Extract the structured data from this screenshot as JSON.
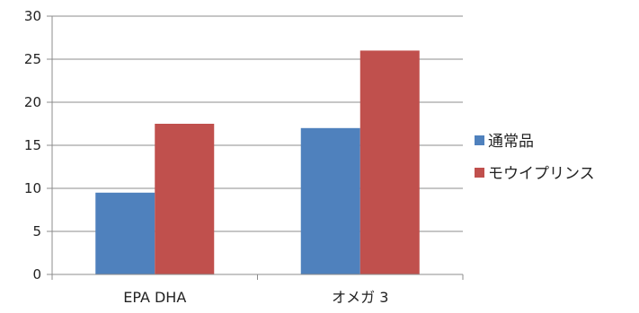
{
  "chart_data": {
    "type": "bar",
    "categories": [
      "EPA DHA",
      "オメガ 3"
    ],
    "series": [
      {
        "name": "通常品",
        "values": [
          9.5,
          17
        ],
        "color": "#4f81bd"
      },
      {
        "name": "モウイプリンス",
        "values": [
          17.5,
          26
        ],
        "color": "#c0504d"
      }
    ],
    "ylim": [
      0,
      30
    ],
    "yticks": [
      0,
      5,
      10,
      15,
      20,
      25,
      30
    ],
    "grid": true,
    "legend_position": "right"
  }
}
